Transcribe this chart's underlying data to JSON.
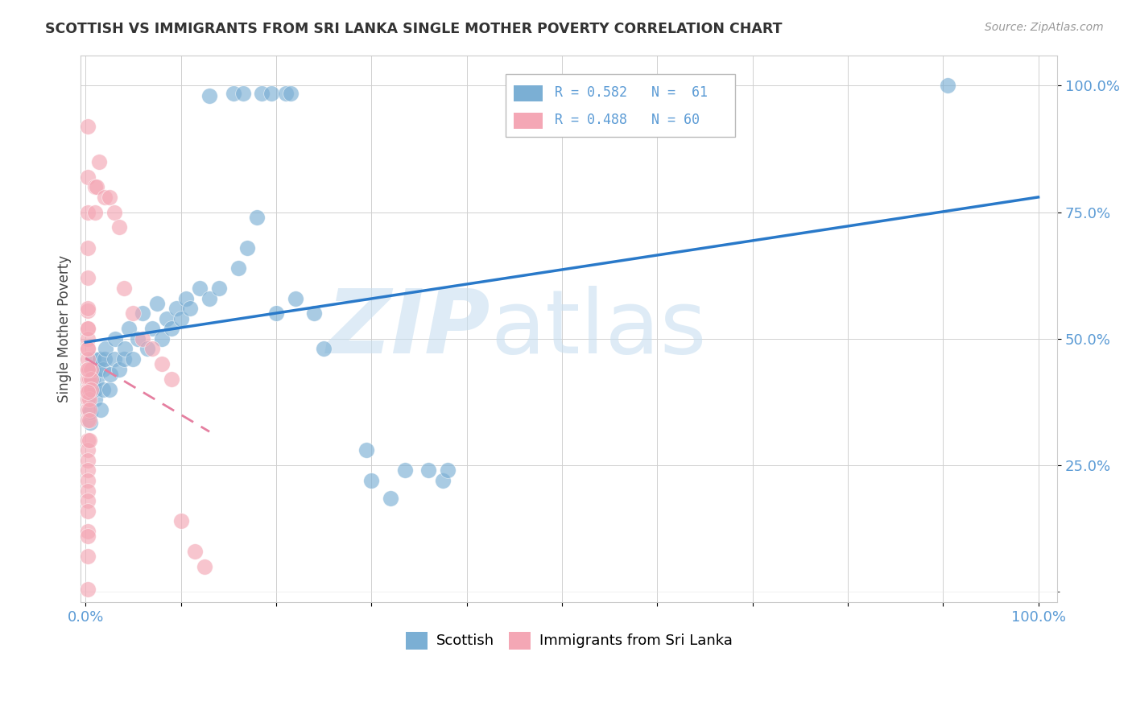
{
  "title": "SCOTTISH VS IMMIGRANTS FROM SRI LANKA SINGLE MOTHER POVERTY CORRELATION CHART",
  "source": "Source: ZipAtlas.com",
  "ylabel": "Single Mother Poverty",
  "legend_R_blue": "R = 0.582",
  "legend_N_blue": "N =  61",
  "legend_R_pink": "R = 0.488",
  "legend_N_pink": "N = 60",
  "blue_color": "#7bafd4",
  "pink_color": "#f4a7b5",
  "trendline_blue": "#2979c9",
  "trendline_pink": "#e57fa0",
  "blue_scatter_x": [
    0.005,
    0.005,
    0.007,
    0.007,
    0.008,
    0.01,
    0.01,
    0.012,
    0.013,
    0.015,
    0.016,
    0.018,
    0.018,
    0.02,
    0.021,
    0.025,
    0.026,
    0.03,
    0.031,
    0.035,
    0.04,
    0.041,
    0.045,
    0.05,
    0.055,
    0.06,
    0.065,
    0.07,
    0.075,
    0.08,
    0.085,
    0.09,
    0.095,
    0.1,
    0.105,
    0.11,
    0.12,
    0.13,
    0.14,
    0.16,
    0.17,
    0.18,
    0.2,
    0.22,
    0.24,
    0.25,
    0.295,
    0.3,
    0.32,
    0.335,
    0.36,
    0.375,
    0.38,
    0.13,
    0.155,
    0.165,
    0.185,
    0.195,
    0.21,
    0.215,
    0.905
  ],
  "blue_scatter_y": [
    0.335,
    0.355,
    0.42,
    0.44,
    0.46,
    0.38,
    0.4,
    0.42,
    0.44,
    0.46,
    0.36,
    0.4,
    0.44,
    0.46,
    0.48,
    0.4,
    0.43,
    0.46,
    0.5,
    0.44,
    0.46,
    0.48,
    0.52,
    0.46,
    0.5,
    0.55,
    0.48,
    0.52,
    0.57,
    0.5,
    0.54,
    0.52,
    0.56,
    0.54,
    0.58,
    0.56,
    0.6,
    0.58,
    0.6,
    0.64,
    0.68,
    0.74,
    0.55,
    0.58,
    0.55,
    0.48,
    0.28,
    0.22,
    0.185,
    0.24,
    0.24,
    0.22,
    0.24,
    0.98,
    0.985,
    0.985,
    0.985,
    0.985,
    0.985,
    0.985,
    1.0
  ],
  "pink_scatter_x": [
    0.002,
    0.002,
    0.002,
    0.002,
    0.002,
    0.002,
    0.002,
    0.002,
    0.002,
    0.002,
    0.002,
    0.002,
    0.002,
    0.002,
    0.002,
    0.002,
    0.002,
    0.002,
    0.002,
    0.002,
    0.002,
    0.002,
    0.002,
    0.002,
    0.002,
    0.004,
    0.004,
    0.004,
    0.004,
    0.004,
    0.004,
    0.004,
    0.006,
    0.006,
    0.006,
    0.01,
    0.01,
    0.012,
    0.014,
    0.02,
    0.025,
    0.03,
    0.035,
    0.04,
    0.05,
    0.06,
    0.07,
    0.08,
    0.09,
    0.1,
    0.115,
    0.125,
    0.002,
    0.002,
    0.002,
    0.002,
    0.002,
    0.002,
    0.002,
    0.002
  ],
  "pink_scatter_y": [
    0.92,
    0.82,
    0.75,
    0.68,
    0.62,
    0.555,
    0.52,
    0.5,
    0.48,
    0.46,
    0.44,
    0.42,
    0.4,
    0.38,
    0.36,
    0.34,
    0.3,
    0.28,
    0.26,
    0.24,
    0.22,
    0.2,
    0.18,
    0.16,
    0.12,
    0.44,
    0.42,
    0.4,
    0.38,
    0.36,
    0.34,
    0.3,
    0.44,
    0.42,
    0.4,
    0.8,
    0.75,
    0.8,
    0.85,
    0.78,
    0.78,
    0.75,
    0.72,
    0.6,
    0.55,
    0.5,
    0.48,
    0.45,
    0.42,
    0.14,
    0.08,
    0.05,
    0.07,
    0.11,
    0.56,
    0.52,
    0.48,
    0.44,
    0.395,
    0.005
  ]
}
